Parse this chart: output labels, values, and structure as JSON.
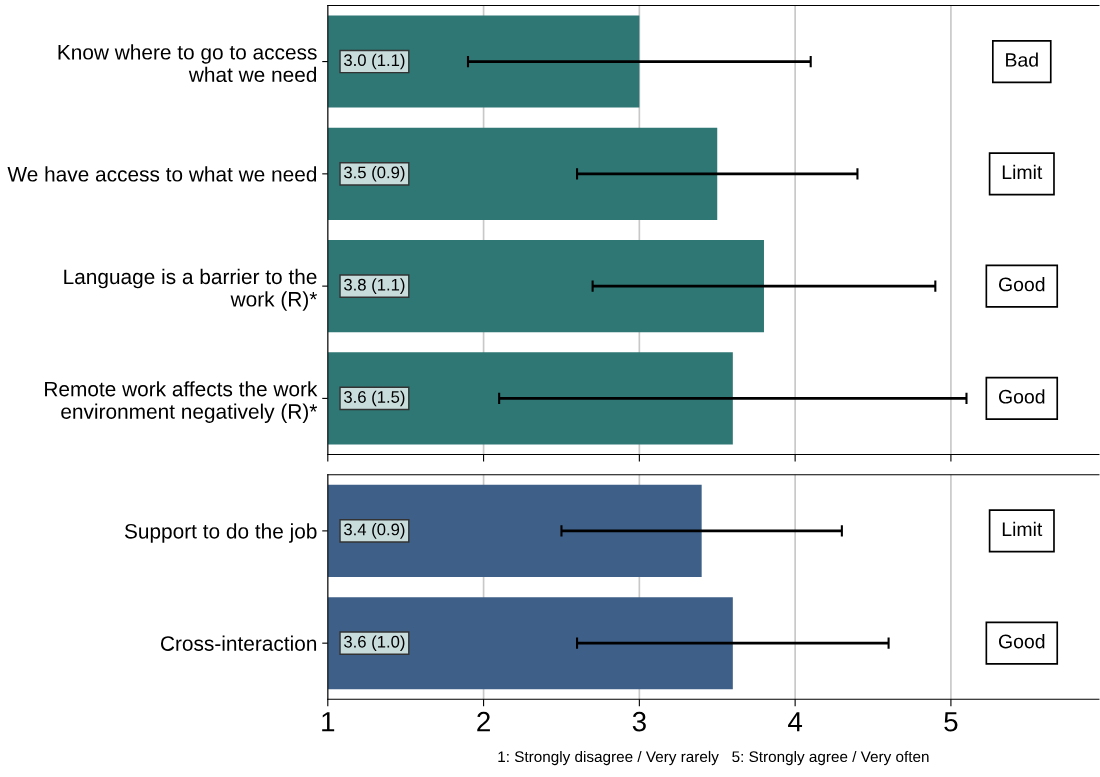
{
  "chart_data": [
    {
      "type": "bar",
      "orientation": "horizontal",
      "categories": [
        "Know where to go to access\nwhat we need",
        "We have access to what we need",
        "Language is a barrier to the\nwork (R)*",
        "Remote work affects the work\nenvironment negatively (R)*"
      ],
      "series": [
        {
          "color": "#2e7775",
          "values": [
            3.0,
            3.5,
            3.8,
            3.6
          ],
          "errors": [
            1.1,
            0.9,
            1.1,
            1.5
          ],
          "value_labels": [
            "3.0 (1.1)",
            "3.5 (0.9)",
            "3.8 (1.1)",
            "3.6 (1.5)"
          ]
        }
      ],
      "xlim": [
        1,
        5.95
      ],
      "xticks": [
        1,
        2,
        3,
        4,
        5
      ],
      "grid": "x",
      "tick_labels": "y",
      "annotations": [
        "Bad",
        "Limit",
        "Good",
        "Good"
      ]
    },
    {
      "type": "bar",
      "orientation": "horizontal",
      "categories": [
        "Support to do the job",
        "Cross-interaction"
      ],
      "series": [
        {
          "color": "#3e5f87",
          "values": [
            3.4,
            3.6
          ],
          "errors": [
            0.9,
            1.0
          ],
          "value_labels": [
            "3.4 (0.9)",
            "3.6 (1.0)"
          ]
        }
      ],
      "xlim": [
        1,
        5.95
      ],
      "xticks": [
        1,
        2,
        3,
        4,
        5
      ],
      "grid": "x",
      "xlabel": "1: Strongly disagree / Very rarely   5: Strongly agree / Very often",
      "annotations": [
        "Limit",
        "Good"
      ]
    }
  ]
}
